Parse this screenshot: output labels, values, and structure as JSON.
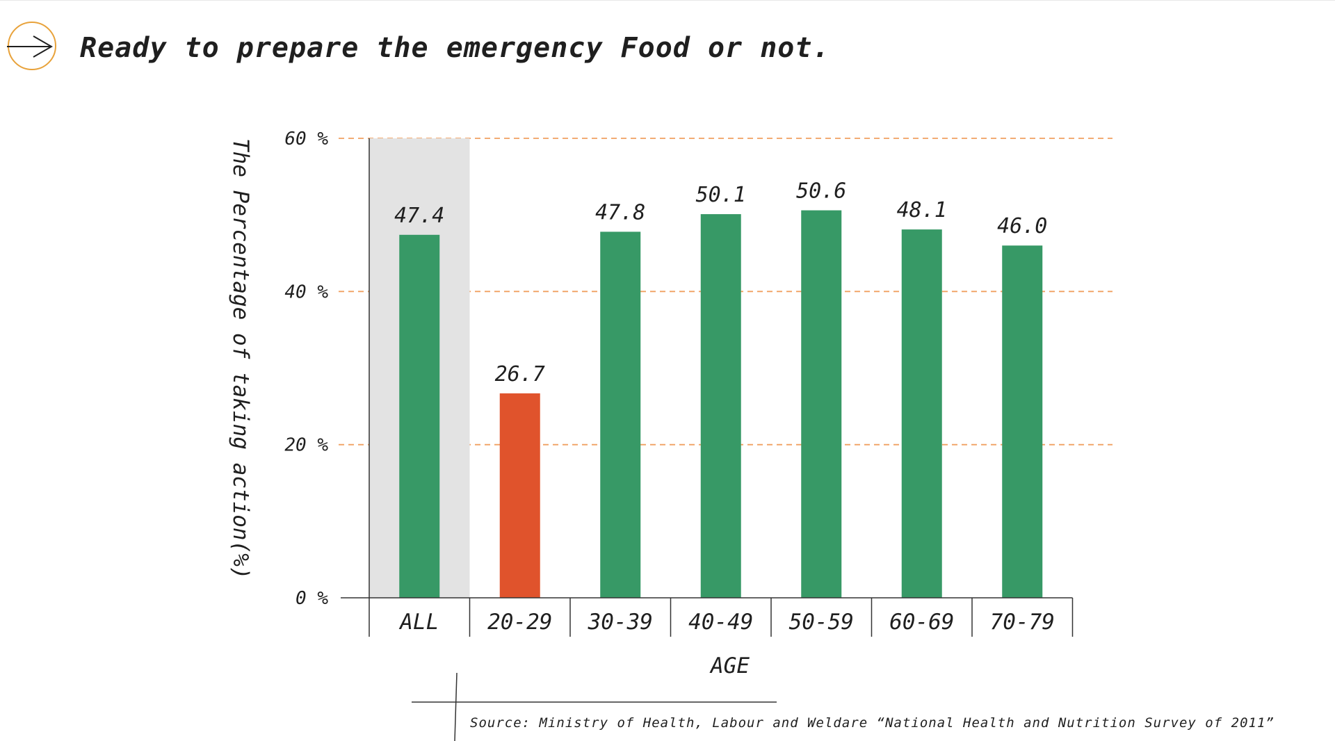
{
  "header": {
    "title": "Ready to prepare the emergency Food or not.",
    "icon": "arrow-right-circle-icon",
    "icon_color": "#e8a23a"
  },
  "chart_data": {
    "type": "bar",
    "categories": [
      "ALL",
      "20-29",
      "30-39",
      "40-49",
      "50-59",
      "60-69",
      "70-79"
    ],
    "values": [
      47.4,
      26.7,
      47.8,
      50.1,
      50.6,
      48.1,
      46.0
    ],
    "value_labels": [
      "47.4",
      "26.7",
      "47.8",
      "50.1",
      "50.6",
      "48.1",
      "46.0"
    ],
    "colors": [
      "#379966",
      "#e0532c",
      "#379966",
      "#379966",
      "#379966",
      "#379966",
      "#379966"
    ],
    "highlight_category": "ALL",
    "highlight_color": "#e3e3e3",
    "ytick_labels": [
      "0 %",
      "20 %",
      "40 %",
      "60 %"
    ],
    "ylim": [
      0,
      60
    ],
    "ylabel": "The Percentage of taking action(%)",
    "xlabel": "AGE",
    "grid_color": "#f0a060",
    "grid": true
  },
  "source": {
    "text": "Source: Ministry of Health, Labour and Weldare “National Health and Nutrition Survey of 2011”"
  }
}
